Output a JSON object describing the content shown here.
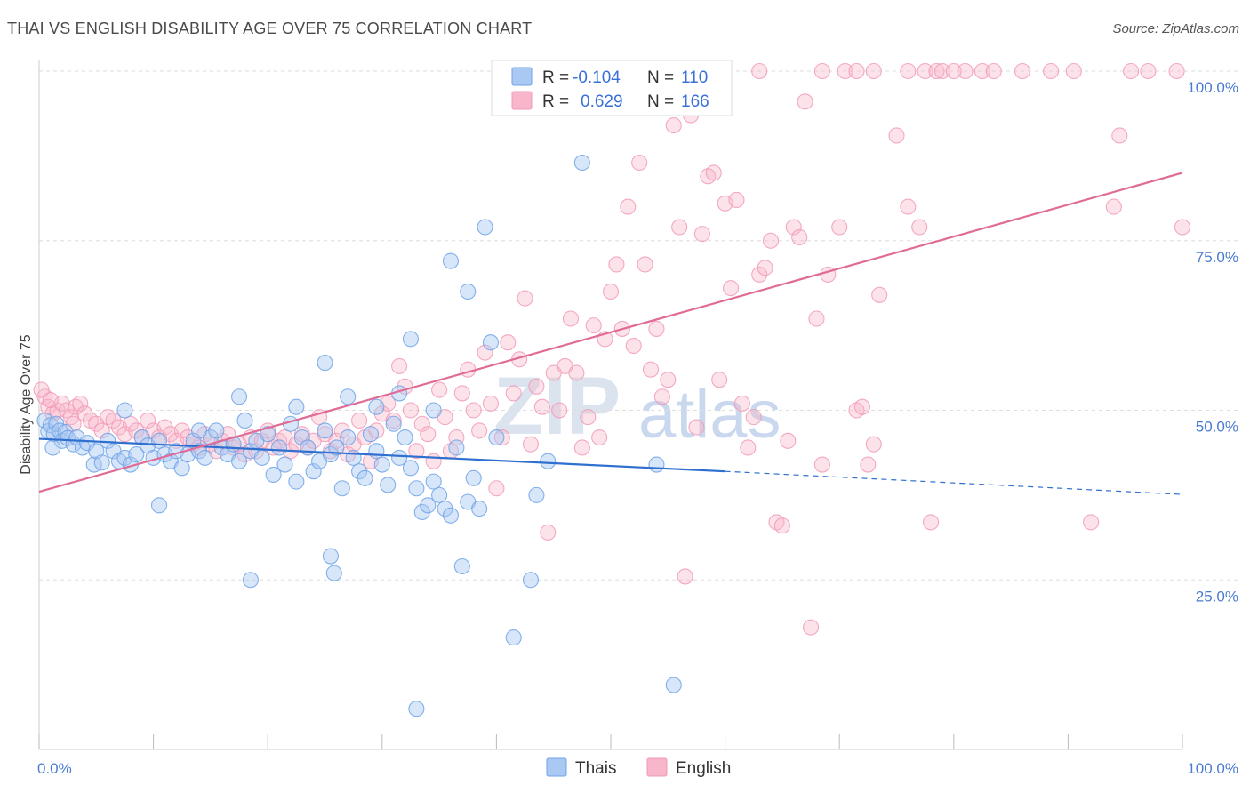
{
  "title": "THAI VS ENGLISH DISABILITY AGE OVER 75 CORRELATION CHART",
  "source": "Source: ZipAtlas.com",
  "watermark": {
    "zip": "ZIP",
    "atlas": "atlas"
  },
  "chart_data": {
    "type": "scatter",
    "xlabel": "",
    "ylabel": "Disability Age Over 75",
    "xlim": [
      0,
      100
    ],
    "ylim": [
      0,
      100
    ],
    "x_tick_labels": [
      "0.0%",
      "100.0%"
    ],
    "y_ticks": [
      {
        "value": 25,
        "label": "25.0%"
      },
      {
        "value": 50,
        "label": "50.0%"
      },
      {
        "value": 75,
        "label": "75.0%"
      },
      {
        "value": 100,
        "label": "100.0%"
      }
    ],
    "grid": "horizontal dashed",
    "legend_top": [
      {
        "r_label": "R =",
        "r_value": "-0.104",
        "n_label": "N =",
        "n_value": "110",
        "color": "#a9c8f2"
      },
      {
        "r_label": "R =",
        "r_value": "0.629",
        "n_label": "N =",
        "n_value": "166",
        "color": "#f7b6c9"
      }
    ],
    "legend_bottom": [
      {
        "name": "Thais",
        "color": "#a9c8f2"
      },
      {
        "name": "English",
        "color": "#f7b6c9"
      }
    ],
    "series": [
      {
        "name": "Thais",
        "color": "#6fa3e8",
        "line_color": "#2f6fd0",
        "trend": {
          "x0": 0,
          "y0": 45.8,
          "x1": 60,
          "y1": 41.0,
          "dash_to_x": 100,
          "dash_to_y": 37.6
        },
        "points": [
          [
            0.5,
            48.5
          ],
          [
            0.8,
            46.9
          ],
          [
            1.0,
            47.8
          ],
          [
            1.3,
            46.5
          ],
          [
            1.5,
            48.0
          ],
          [
            1.8,
            47.0
          ],
          [
            2.0,
            45.5
          ],
          [
            2.3,
            46.8
          ],
          [
            2.5,
            45.9
          ],
          [
            3.0,
            45.0
          ],
          [
            3.3,
            46.0
          ],
          [
            3.8,
            44.5
          ],
          [
            4.2,
            45.2
          ],
          [
            4.8,
            42.0
          ],
          [
            5.0,
            44.0
          ],
          [
            5.5,
            42.3
          ],
          [
            6.0,
            45.5
          ],
          [
            6.5,
            44.0
          ],
          [
            7.0,
            42.5
          ],
          [
            7.5,
            43.0
          ],
          [
            8.0,
            42.0
          ],
          [
            8.5,
            43.5
          ],
          [
            9.0,
            46.0
          ],
          [
            9.5,
            44.8
          ],
          [
            10.0,
            43.0
          ],
          [
            10.5,
            45.5
          ],
          [
            11.0,
            43.5
          ],
          [
            11.5,
            42.5
          ],
          [
            12.0,
            44.0
          ],
          [
            12.5,
            41.5
          ],
          [
            13.0,
            43.5
          ],
          [
            13.5,
            45.5
          ],
          [
            14.0,
            44.0
          ],
          [
            14.5,
            43.0
          ],
          [
            15.0,
            46.0
          ],
          [
            15.5,
            47.0
          ],
          [
            16.0,
            44.5
          ],
          [
            16.5,
            43.5
          ],
          [
            17.0,
            45.0
          ],
          [
            17.5,
            42.5
          ],
          [
            18.0,
            48.5
          ],
          [
            18.5,
            44.0
          ],
          [
            19.0,
            45.5
          ],
          [
            19.5,
            43.0
          ],
          [
            20.0,
            46.5
          ],
          [
            20.5,
            40.5
          ],
          [
            21.0,
            44.5
          ],
          [
            21.5,
            42.0
          ],
          [
            22.0,
            48.0
          ],
          [
            22.5,
            39.5
          ],
          [
            23.0,
            46.0
          ],
          [
            23.5,
            44.5
          ],
          [
            24.0,
            41.0
          ],
          [
            24.5,
            42.5
          ],
          [
            25.0,
            47.0
          ],
          [
            25.5,
            43.5
          ],
          [
            26.0,
            44.5
          ],
          [
            26.5,
            38.5
          ],
          [
            27.0,
            46.0
          ],
          [
            27.5,
            43.0
          ],
          [
            28.0,
            41.0
          ],
          [
            28.5,
            40.0
          ],
          [
            29.0,
            46.5
          ],
          [
            29.5,
            44.0
          ],
          [
            30.0,
            42.0
          ],
          [
            30.5,
            39.0
          ],
          [
            31.0,
            48.0
          ],
          [
            31.5,
            43.0
          ],
          [
            32.0,
            46.0
          ],
          [
            32.5,
            41.5
          ],
          [
            33.0,
            38.5
          ],
          [
            33.5,
            35.0
          ],
          [
            34.0,
            36.0
          ],
          [
            34.5,
            39.5
          ],
          [
            35.0,
            37.5
          ],
          [
            35.5,
            35.5
          ],
          [
            36.0,
            34.5
          ],
          [
            36.5,
            44.5
          ],
          [
            37.0,
            27.0
          ],
          [
            37.5,
            36.5
          ],
          [
            38.0,
            40.0
          ],
          [
            38.5,
            35.5
          ],
          [
            10.5,
            36.0
          ],
          [
            18.5,
            25.0
          ],
          [
            25.5,
            28.5
          ],
          [
            25.8,
            26.0
          ],
          [
            14.0,
            47.0
          ],
          [
            17.5,
            52.0
          ],
          [
            22.5,
            50.5
          ],
          [
            25.0,
            57.0
          ],
          [
            27.0,
            52.0
          ],
          [
            29.5,
            50.5
          ],
          [
            31.5,
            52.5
          ],
          [
            32.5,
            60.5
          ],
          [
            34.5,
            50.0
          ],
          [
            36.0,
            72.0
          ],
          [
            37.5,
            67.5
          ],
          [
            39.0,
            77.0
          ],
          [
            39.5,
            60.0
          ],
          [
            40.0,
            46.0
          ],
          [
            47.5,
            86.5
          ],
          [
            43.5,
            37.5
          ],
          [
            43.0,
            25.0
          ],
          [
            54.0,
            42.0
          ],
          [
            44.5,
            42.5
          ],
          [
            41.5,
            16.5
          ],
          [
            55.5,
            9.5
          ],
          [
            33.0,
            6.0
          ],
          [
            7.5,
            50.0
          ],
          [
            1.2,
            44.5
          ]
        ]
      },
      {
        "name": "English",
        "color": "#f29ab8",
        "line_color": "#e06b96",
        "trend": {
          "x0": 0,
          "y0": 38.0,
          "x1": 100,
          "y1": 85.0
        },
        "points": [
          [
            0.5,
            52.0
          ],
          [
            0.8,
            50.5
          ],
          [
            1.2,
            49.5
          ],
          [
            1.6,
            50.0
          ],
          [
            2.0,
            51.0
          ],
          [
            2.4,
            50.0
          ],
          [
            2.8,
            49.0
          ],
          [
            3.2,
            50.5
          ],
          [
            3.6,
            51.0
          ],
          [
            4.0,
            49.5
          ],
          [
            4.5,
            48.5
          ],
          [
            5.0,
            48.0
          ],
          [
            5.5,
            47.0
          ],
          [
            6.0,
            49.0
          ],
          [
            6.5,
            48.5
          ],
          [
            7.0,
            47.5
          ],
          [
            7.5,
            46.5
          ],
          [
            8.0,
            48.0
          ],
          [
            8.5,
            47.0
          ],
          [
            9.0,
            46.0
          ],
          [
            9.5,
            48.5
          ],
          [
            10.0,
            47.0
          ],
          [
            10.5,
            46.0
          ],
          [
            11.0,
            47.5
          ],
          [
            11.5,
            46.5
          ],
          [
            12.0,
            45.5
          ],
          [
            12.5,
            47.0
          ],
          [
            13.0,
            46.0
          ],
          [
            13.5,
            45.0
          ],
          [
            14.0,
            44.5
          ],
          [
            14.5,
            46.5
          ],
          [
            15.0,
            45.0
          ],
          [
            15.5,
            44.0
          ],
          [
            16.0,
            45.5
          ],
          [
            16.5,
            46.5
          ],
          [
            17.0,
            44.5
          ],
          [
            17.5,
            45.0
          ],
          [
            18.0,
            43.5
          ],
          [
            18.5,
            46.0
          ],
          [
            19.0,
            44.0
          ],
          [
            19.5,
            45.5
          ],
          [
            20.0,
            47.0
          ],
          [
            20.5,
            44.5
          ],
          [
            21.0,
            45.5
          ],
          [
            21.5,
            46.0
          ],
          [
            22.0,
            44.0
          ],
          [
            22.5,
            45.0
          ],
          [
            23.0,
            46.5
          ],
          [
            23.5,
            44.5
          ],
          [
            24.0,
            45.5
          ],
          [
            24.5,
            49.0
          ],
          [
            25.0,
            46.5
          ],
          [
            25.5,
            44.0
          ],
          [
            26.0,
            45.5
          ],
          [
            26.5,
            47.0
          ],
          [
            27.0,
            43.5
          ],
          [
            27.5,
            45.0
          ],
          [
            28.0,
            48.5
          ],
          [
            28.5,
            46.0
          ],
          [
            29.0,
            42.5
          ],
          [
            29.5,
            47.0
          ],
          [
            30.0,
            49.5
          ],
          [
            30.5,
            51.0
          ],
          [
            31.0,
            48.5
          ],
          [
            31.5,
            56.5
          ],
          [
            32.0,
            53.5
          ],
          [
            32.5,
            50.0
          ],
          [
            33.0,
            44.0
          ],
          [
            33.5,
            48.0
          ],
          [
            34.0,
            46.5
          ],
          [
            34.5,
            42.5
          ],
          [
            35.0,
            53.0
          ],
          [
            35.5,
            49.0
          ],
          [
            36.0,
            44.0
          ],
          [
            36.5,
            46.0
          ],
          [
            37.0,
            52.5
          ],
          [
            37.5,
            56.0
          ],
          [
            38.0,
            50.0
          ],
          [
            38.5,
            47.0
          ],
          [
            39.0,
            58.5
          ],
          [
            39.5,
            51.0
          ],
          [
            40.0,
            38.5
          ],
          [
            40.5,
            46.0
          ],
          [
            41.0,
            60.0
          ],
          [
            41.5,
            52.5
          ],
          [
            42.0,
            57.5
          ],
          [
            42.5,
            66.5
          ],
          [
            43.0,
            45.0
          ],
          [
            43.5,
            53.5
          ],
          [
            44.0,
            50.5
          ],
          [
            44.5,
            32.0
          ],
          [
            45.0,
            55.5
          ],
          [
            45.5,
            50.0
          ],
          [
            46.0,
            56.5
          ],
          [
            46.5,
            63.5
          ],
          [
            47.0,
            55.5
          ],
          [
            47.5,
            44.5
          ],
          [
            48.0,
            49.0
          ],
          [
            48.5,
            62.5
          ],
          [
            49.0,
            46.0
          ],
          [
            49.5,
            60.5
          ],
          [
            50.0,
            67.5
          ],
          [
            50.5,
            71.5
          ],
          [
            51.0,
            62.0
          ],
          [
            51.5,
            80.0
          ],
          [
            52.0,
            59.5
          ],
          [
            52.5,
            86.5
          ],
          [
            53.0,
            71.5
          ],
          [
            53.5,
            56.0
          ],
          [
            54.0,
            62.0
          ],
          [
            54.5,
            52.0
          ],
          [
            55.0,
            54.5
          ],
          [
            55.5,
            92.0
          ],
          [
            56.0,
            77.0
          ],
          [
            56.5,
            25.5
          ],
          [
            57.0,
            93.5
          ],
          [
            57.5,
            47.5
          ],
          [
            58.0,
            76.0
          ],
          [
            58.5,
            84.5
          ],
          [
            59.0,
            85.0
          ],
          [
            59.5,
            54.5
          ],
          [
            60.0,
            80.5
          ],
          [
            60.5,
            68.0
          ],
          [
            61.0,
            81.0
          ],
          [
            61.5,
            51.0
          ],
          [
            62.0,
            44.5
          ],
          [
            62.5,
            49.0
          ],
          [
            63.0,
            70.0
          ],
          [
            63.5,
            71.0
          ],
          [
            64.0,
            75.0
          ],
          [
            64.5,
            33.5
          ],
          [
            65.0,
            33.0
          ],
          [
            65.5,
            45.5
          ],
          [
            66.0,
            77.0
          ],
          [
            66.5,
            75.5
          ],
          [
            67.0,
            95.5
          ],
          [
            67.5,
            18.0
          ],
          [
            68.0,
            63.5
          ],
          [
            68.5,
            42.0
          ],
          [
            69.0,
            70.0
          ],
          [
            70.0,
            77.0
          ],
          [
            71.5,
            50.0
          ],
          [
            72.0,
            50.5
          ],
          [
            72.5,
            42.0
          ],
          [
            73.0,
            45.0
          ],
          [
            73.5,
            67.0
          ],
          [
            75.0,
            90.5
          ],
          [
            76.0,
            80.0
          ],
          [
            77.0,
            77.0
          ],
          [
            78.0,
            33.5
          ],
          [
            63.0,
            100.0
          ],
          [
            68.5,
            100.0
          ],
          [
            70.5,
            100.0
          ],
          [
            71.5,
            100.0
          ],
          [
            73.0,
            100.0
          ],
          [
            76.0,
            100.0
          ],
          [
            77.5,
            100.0
          ],
          [
            78.5,
            100.0
          ],
          [
            79.0,
            100.0
          ],
          [
            80.0,
            100.0
          ],
          [
            81.0,
            100.0
          ],
          [
            82.5,
            100.0
          ],
          [
            83.5,
            100.0
          ],
          [
            86.0,
            100.0
          ],
          [
            88.5,
            100.0
          ],
          [
            90.5,
            100.0
          ],
          [
            95.5,
            100.0
          ],
          [
            97.0,
            100.0
          ],
          [
            99.5,
            100.0
          ],
          [
            100.0,
            77.0
          ],
          [
            94.5,
            90.5
          ],
          [
            94.0,
            80.0
          ],
          [
            92.0,
            33.5
          ],
          [
            0.2,
            53.0
          ],
          [
            1.0,
            51.5
          ],
          [
            3.0,
            48.0
          ]
        ]
      }
    ]
  }
}
